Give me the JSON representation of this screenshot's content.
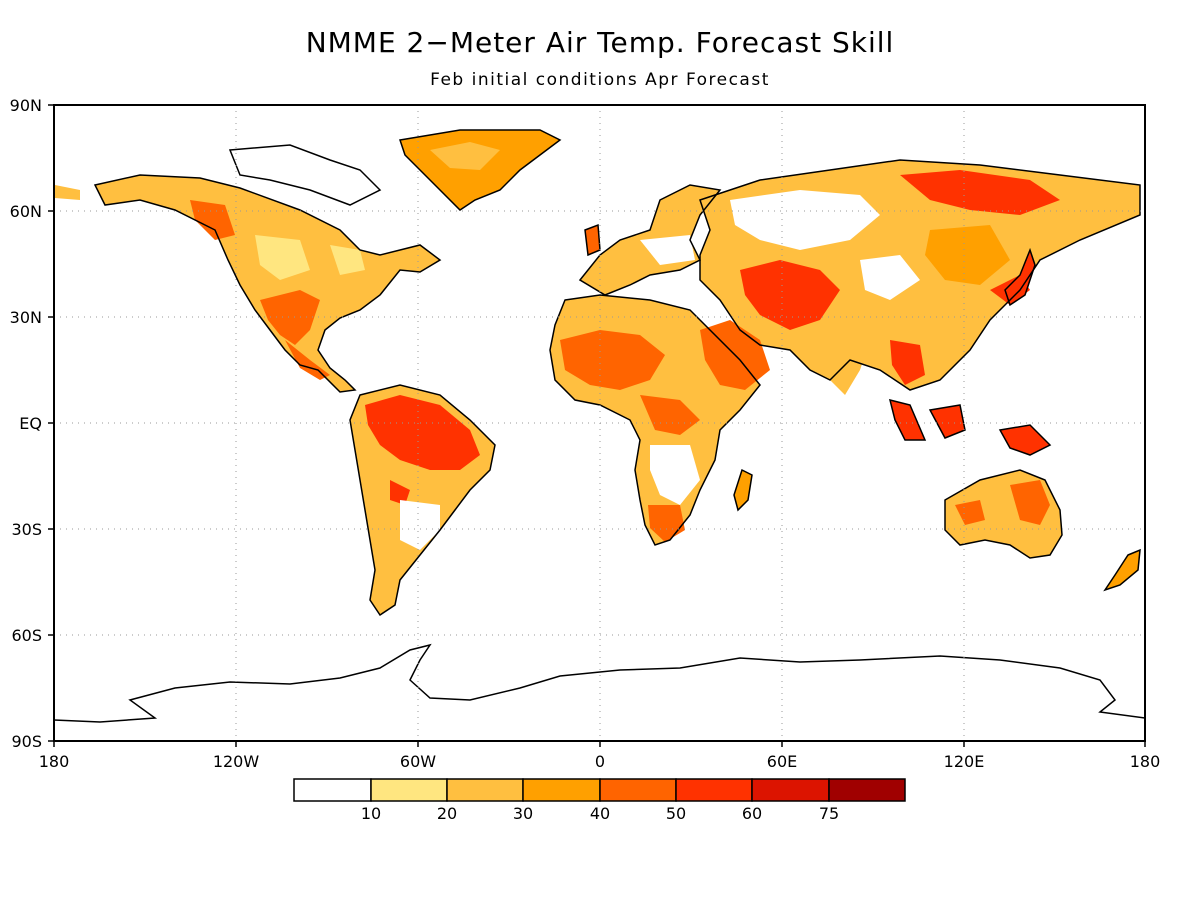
{
  "title": "NMME 2−Meter Air Temp. Forecast Skill",
  "subtitle": "Feb initial conditions  Apr Forecast",
  "axes": {
    "lat_ticks": [
      "90N",
      "60N",
      "30N",
      "EQ",
      "30S",
      "60S",
      "90S"
    ],
    "lon_ticks": [
      "180",
      "120W",
      "60W",
      "0",
      "60E",
      "120E",
      "180"
    ]
  },
  "colorbar": {
    "labels": [
      "10",
      "20",
      "30",
      "40",
      "50",
      "60",
      "75"
    ],
    "colors": [
      "#ffffff",
      "#ffe680",
      "#ffbf40",
      "#ffa000",
      "#ff6400",
      "#ff3200",
      "#dc1400",
      "#a00000"
    ]
  }
}
